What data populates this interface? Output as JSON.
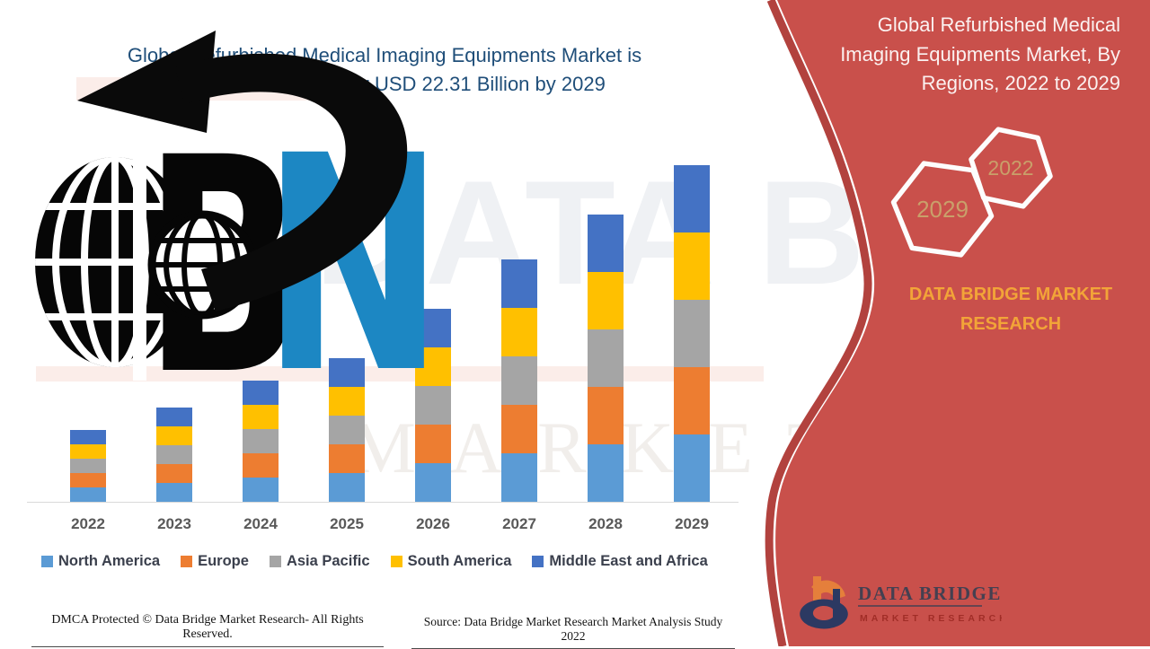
{
  "main_title": {
    "line1": "Global Refurbished Medical Imaging Equipments Market is",
    "line2": "expected to account for USD 22.31 Billion by 2029"
  },
  "side_panel": {
    "title_lines": [
      "Global Refurbished Medical",
      "Imaging Equipments Market, By",
      "Regions, 2022 to 2029"
    ],
    "hexagons": [
      {
        "label": "2029"
      },
      {
        "label": "2022"
      }
    ],
    "brand_line1": "DATA BRIDGE MARKET",
    "brand_line2": "RESEARCH",
    "logo_name": "DATA BRIDGE",
    "logo_subtitle": "MARKET RESEARCH",
    "panel_color": "#C9504B",
    "panel_edge_color": "#B2423E",
    "gold_color": "#F2A438",
    "hex_label_color": "#C9A06A"
  },
  "watermark": {
    "line1": "DATA BRIDGE",
    "line2": "MARKET RESEARCH"
  },
  "logo": {
    "letter_b": "B",
    "letter_n": "N",
    "n_color": "#1C87C3"
  },
  "footer": {
    "dmca": "DMCA Protected © Data Bridge Market Research- All Rights Reserved.",
    "source": "Source: Data Bridge Market Research Market Analysis Study 2022"
  },
  "chart_data": {
    "type": "bar",
    "stacked": true,
    "title": "Global Refurbished Medical Imaging Equipments Market is expected to account for USD 22.31 Billion by 2029",
    "unit": "USD Billion",
    "value_note": "segment values estimated from bar pixel heights; 2029 total anchored to USD 22.31 Billion",
    "categories": [
      "2022",
      "2023",
      "2024",
      "2025",
      "2026",
      "2027",
      "2028",
      "2029"
    ],
    "series": [
      {
        "name": "North America",
        "color": "#5B9BD5",
        "values": [
          0.95,
          1.26,
          1.61,
          1.92,
          2.53,
          3.19,
          3.82,
          4.46
        ]
      },
      {
        "name": "Europe",
        "color": "#ED7D31",
        "values": [
          0.95,
          1.26,
          1.61,
          1.92,
          2.53,
          3.19,
          3.82,
          4.46
        ]
      },
      {
        "name": "Asia Pacific",
        "color": "#A5A5A5",
        "values": [
          0.95,
          1.26,
          1.61,
          1.92,
          2.53,
          3.19,
          3.82,
          4.46
        ]
      },
      {
        "name": "South America",
        "color": "#FFC000",
        "values": [
          0.95,
          1.26,
          1.61,
          1.92,
          2.53,
          3.19,
          3.82,
          4.46
        ]
      },
      {
        "name": "Middle East and Africa",
        "color": "#4472C4",
        "values": [
          0.95,
          1.26,
          1.61,
          1.92,
          2.53,
          3.19,
          3.82,
          4.46
        ]
      }
    ],
    "totals": [
      4.75,
      6.3,
      8.05,
      9.6,
      12.65,
      15.95,
      19.1,
      22.31
    ],
    "highlight_value": "USD 22.31 Billion by 2029",
    "xlabel": "",
    "ylabel": "",
    "y_axis_shown": false,
    "grid": false,
    "legend_position": "bottom"
  }
}
